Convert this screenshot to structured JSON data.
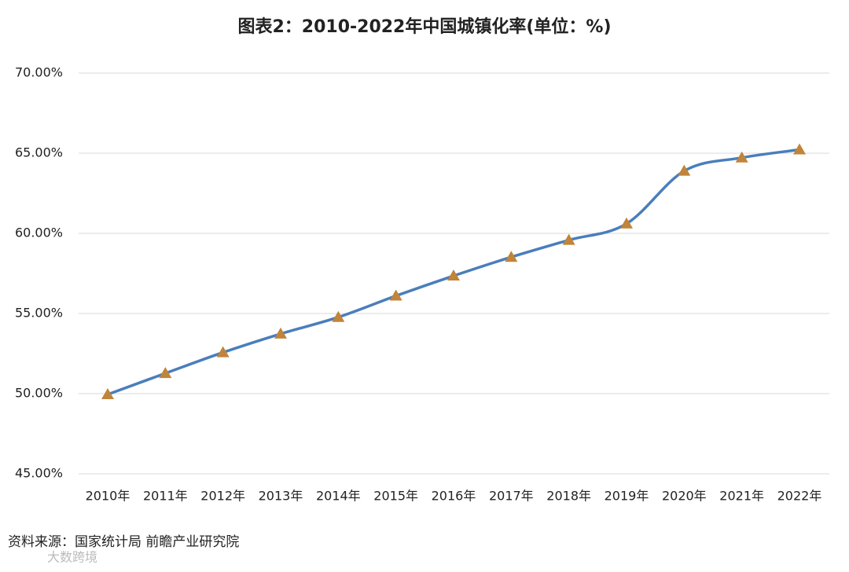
{
  "chart_data": {
    "type": "line",
    "title": "图表2：2010-2022年中国城镇化率(单位：%)",
    "categories": [
      "2010年",
      "2011年",
      "2012年",
      "2013年",
      "2014年",
      "2015年",
      "2016年",
      "2017年",
      "2018年",
      "2019年",
      "2020年",
      "2021年",
      "2022年"
    ],
    "series": [
      {
        "name": "城镇化率",
        "color": "#4a7ebb",
        "marker_color": "#c0843a",
        "values": [
          49.95,
          51.27,
          52.57,
          53.73,
          54.77,
          56.1,
          57.35,
          58.52,
          59.58,
          60.6,
          63.89,
          64.72,
          65.22
        ]
      }
    ],
    "ylim": [
      45,
      70
    ],
    "yticks": [
      {
        "value": 45,
        "label": "45.00%"
      },
      {
        "value": 50,
        "label": "50.00%"
      },
      {
        "value": 55,
        "label": "55.00%"
      },
      {
        "value": 60,
        "label": "60.00%"
      },
      {
        "value": 65,
        "label": "65.00%"
      },
      {
        "value": 70,
        "label": "70.00%"
      }
    ],
    "grid": true,
    "source": "资料来源：国家统计局 前瞻产业研究院",
    "watermark": "大数跨境"
  }
}
